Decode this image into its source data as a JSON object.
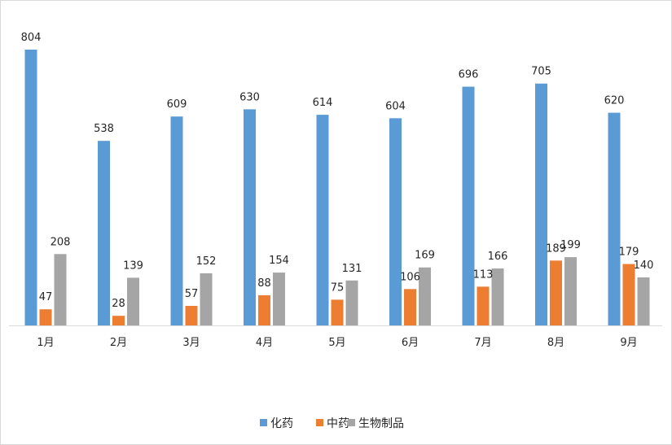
{
  "chart_data": {
    "type": "bar",
    "title": "",
    "xlabel": "",
    "ylabel": "",
    "categories": [
      "1月",
      "2月",
      "3月",
      "4月",
      "5月",
      "6月",
      "7月",
      "8月",
      "9月"
    ],
    "series": [
      {
        "name": "化药",
        "color": "#5b9bd5",
        "values": [
          804,
          538,
          609,
          630,
          614,
          604,
          696,
          705,
          620
        ]
      },
      {
        "name": "中药",
        "color": "#ed7d31",
        "values": [
          47,
          28,
          57,
          88,
          75,
          106,
          113,
          189,
          179
        ]
      },
      {
        "name": "生物制品",
        "color": "#a5a5a5",
        "values": [
          208,
          139,
          152,
          154,
          131,
          169,
          166,
          199,
          140
        ]
      }
    ],
    "ylim": [
      0,
      804
    ],
    "data_labels": true,
    "grid": false,
    "legend": "bottom-center"
  }
}
